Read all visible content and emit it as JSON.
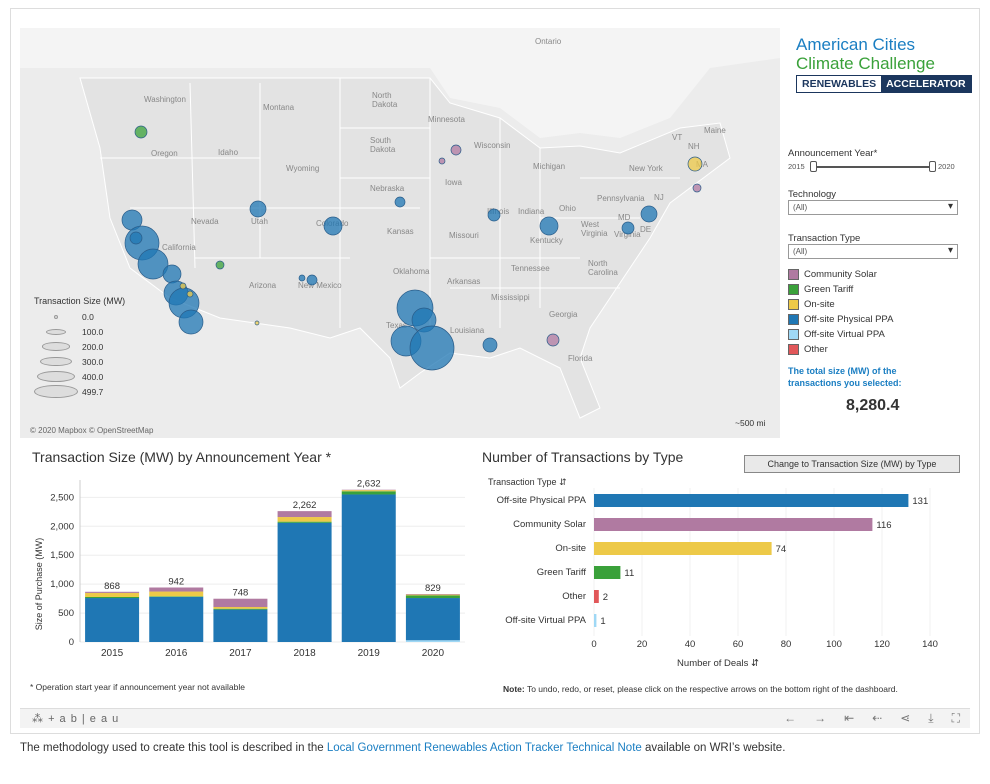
{
  "map": {
    "labels": {
      "ontario": "Ontario",
      "washington": "Washington",
      "montana": "Montana",
      "north_dakota": "North\nDakota",
      "minnesota": "Minnesota",
      "south_dakota": "South\nDakota",
      "wisconsin": "Wisconsin",
      "oregon": "Oregon",
      "idaho": "Idaho",
      "wyoming": "Wyoming",
      "michigan": "Michigan",
      "new_york": "New York",
      "maine": "Maine",
      "nebraska": "Nebraska",
      "iowa": "Iowa",
      "pennsylvania": "Pennsylvania",
      "nevada": "Nevada",
      "utah": "Utah",
      "colorado": "Colorado",
      "illinois": "Illinois",
      "indiana": "Indiana",
      "ohio": "Ohio",
      "kansas": "Kansas",
      "missouri": "Missouri",
      "kentucky": "Kentucky",
      "west_virginia": "West\nVirginia",
      "virginia": "Virginia",
      "california": "California",
      "arizona": "Arizona",
      "new_mexico": "New Mexico",
      "oklahoma": "Oklahoma",
      "tennessee": "Tennessee",
      "north_carolina": "North\nCarolina",
      "arkansas": "Arkansas",
      "mississippi": "Mississippi",
      "georgia": "Georgia",
      "texas": "Texas",
      "louisiana": "Louisiana",
      "florida": "Florida",
      "md": "MD",
      "de": "DE",
      "nj": "NJ",
      "vt": "VT",
      "nh": "NH",
      "ma": "MA"
    },
    "attribution": "© 2020 Mapbox © OpenStreetMap",
    "scale": "~500 mi",
    "size_legend": {
      "title": "Transaction Size (MW)",
      "items": [
        "0.0",
        "100.0",
        "200.0",
        "300.0",
        "400.0",
        "499.7"
      ]
    }
  },
  "logo": {
    "line1": "American Cities",
    "line2": "Climate Challenge",
    "bar1": "RENEWABLES",
    "bar2": "ACCELERATOR"
  },
  "filters": {
    "year_label": "Announcement Year*",
    "year_min": "2015",
    "year_max": "2020",
    "technology_label": "Technology",
    "technology_value": "(All)",
    "transaction_label": "Transaction Type",
    "transaction_value": "(All)"
  },
  "type_legend": [
    {
      "label": "Community Solar",
      "color": "#b07aa1"
    },
    {
      "label": "Green Tariff",
      "color": "#3aa13a"
    },
    {
      "label": "On-site",
      "color": "#edc948"
    },
    {
      "label": "Off-site Physical PPA",
      "color": "#1f77b4"
    },
    {
      "label": "Off-site Virtual PPA",
      "color": "#9fd8f5"
    },
    {
      "label": "Other",
      "color": "#e15759"
    }
  ],
  "total": {
    "label": "The total size (MW) of the transactions you selected:",
    "value": "8,280.4"
  },
  "bar_panel": {
    "title": "Transaction Size (MW) by Announcement Year *",
    "ylabel": "Size of Purchase (MW)",
    "footnote": "* Operation start year if announcement year not available"
  },
  "hbar_panel": {
    "title": "Number of Transactions by Type",
    "button": "Change to Transaction Size (MW) by Type",
    "header": "Transaction Type",
    "xlabel": "Number of Deals",
    "note_bold": "Note:",
    "note": "To undo, redo, or reset, please click on the respective arrows on the bottom right of the dashboard."
  },
  "chart_data": [
    {
      "type": "bar",
      "title": "Transaction Size (MW) by Announcement Year *",
      "ylabel": "Size of Purchase (MW)",
      "categories": [
        "2015",
        "2016",
        "2017",
        "2018",
        "2019",
        "2020"
      ],
      "totals": [
        868,
        942,
        748,
        2262,
        2632,
        829
      ],
      "total_labels": [
        "868",
        "942",
        "748",
        "2,262",
        "2,632",
        "829"
      ],
      "series": [
        {
          "name": "Off-site Virtual PPA",
          "color": "#9fd8f5",
          "values": [
            0,
            0,
            0,
            0,
            0,
            30
          ]
        },
        {
          "name": "Off-site Physical PPA",
          "color": "#1f77b4",
          "values": [
            760,
            780,
            560,
            2060,
            2550,
            730
          ]
        },
        {
          "name": "Green Tariff",
          "color": "#3aa13a",
          "values": [
            18,
            10,
            15,
            20,
            55,
            45
          ]
        },
        {
          "name": "On-site",
          "color": "#edc948",
          "values": [
            70,
            82,
            30,
            80,
            20,
            14
          ]
        },
        {
          "name": "Community Solar",
          "color": "#b07aa1",
          "values": [
            20,
            70,
            143,
            102,
            7,
            10
          ]
        }
      ],
      "yticks": [
        0,
        500,
        1000,
        1500,
        2000,
        2500
      ],
      "ytick_labels": [
        "0",
        "500",
        "1,000",
        "1,500",
        "2,000",
        "2,500"
      ],
      "ylim": [
        0,
        2800
      ]
    },
    {
      "type": "bar",
      "orientation": "horizontal",
      "title": "Number of Transactions by Type",
      "xlabel": "Number of Deals",
      "categories": [
        "Off-site Physical PPA",
        "Community Solar",
        "On-site",
        "Green Tariff",
        "Other",
        "Off-site Virtual PPA"
      ],
      "values": [
        131,
        116,
        74,
        11,
        2,
        1
      ],
      "colors": [
        "#1f77b4",
        "#b07aa1",
        "#edc948",
        "#3aa13a",
        "#e15759",
        "#9fd8f5"
      ],
      "xticks": [
        0,
        20,
        40,
        60,
        80,
        100,
        120,
        140
      ],
      "xlim": [
        0,
        145
      ]
    }
  ],
  "toolbar": {
    "brand": "+ a b | e a u"
  },
  "footer": {
    "before": "The methodology used to create this tool is described in the ",
    "link": "Local Government Renewables Action Tracker Technical Note",
    "after": " available on WRI’s website."
  }
}
